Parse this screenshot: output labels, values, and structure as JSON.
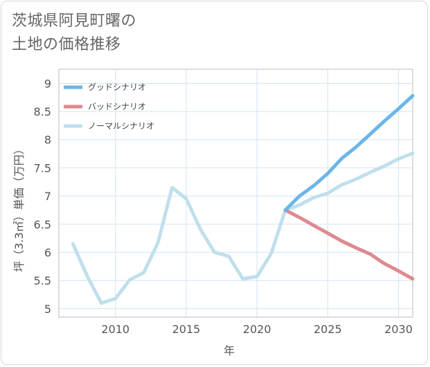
{
  "title_lines": [
    "茨城県阿見町曙の",
    "土地の価格推移"
  ],
  "chart_data": {
    "type": "line",
    "xlabel": "年",
    "ylabel": "坪（3.3㎡）単価（万円）",
    "xlim": [
      2006,
      2031
    ],
    "ylim": [
      4.85,
      9.25
    ],
    "xticks": [
      2010,
      2015,
      2020,
      2025,
      2030
    ],
    "yticks": [
      5,
      5.5,
      6,
      6.5,
      7,
      7.5,
      8,
      8.5,
      9
    ],
    "ytick_labels": [
      "5",
      "5.5",
      "6",
      "6.5",
      "7",
      "7.5",
      "8",
      "8.5",
      "9"
    ],
    "grid": true,
    "legend_position": "top-left",
    "series": [
      {
        "name": "グッドシナリオ",
        "color": "#6bb5ea",
        "x": [
          2022,
          2023,
          2024,
          2025,
          2026,
          2027,
          2028,
          2029,
          2030,
          2031
        ],
        "y": [
          6.75,
          7.0,
          7.18,
          7.4,
          7.67,
          7.87,
          8.1,
          8.33,
          8.55,
          8.78
        ]
      },
      {
        "name": "バッドシナリオ",
        "color": "#dd8a90",
        "x": [
          2022,
          2023,
          2024,
          2025,
          2026,
          2027,
          2028,
          2029,
          2030,
          2031
        ],
        "y": [
          6.75,
          6.62,
          6.48,
          6.34,
          6.2,
          6.08,
          5.97,
          5.8,
          5.67,
          5.53
        ]
      },
      {
        "name": "ノーマルシナリオ",
        "color": "#c0dfec",
        "x": [
          2007,
          2008,
          2009,
          2010,
          2011,
          2012,
          2013,
          2014,
          2015,
          2016,
          2017,
          2018,
          2019,
          2020,
          2021,
          2022,
          2023,
          2024,
          2025,
          2026,
          2027,
          2028,
          2029,
          2030,
          2031
        ],
        "y": [
          6.15,
          5.58,
          5.1,
          5.18,
          5.51,
          5.64,
          6.17,
          7.15,
          6.95,
          6.41,
          6.0,
          5.93,
          5.53,
          5.57,
          5.98,
          6.75,
          6.84,
          6.97,
          7.05,
          7.2,
          7.3,
          7.42,
          7.53,
          7.66,
          7.76
        ]
      }
    ]
  }
}
